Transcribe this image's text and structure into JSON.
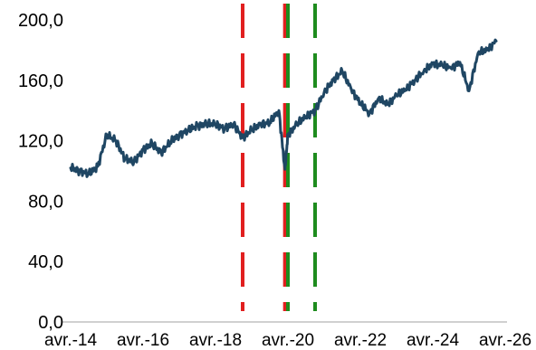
{
  "chart_data": {
    "type": "line",
    "title": "",
    "xlabel": "",
    "ylabel": "",
    "ylim": [
      0,
      200
    ],
    "yticks": [
      "0,0",
      "40,0",
      "80,0",
      "120,0",
      "160,0",
      "200,0"
    ],
    "ytick_values": [
      0,
      40,
      80,
      120,
      160,
      200
    ],
    "xlim": [
      "2014-04",
      "2026-04"
    ],
    "xticks": [
      "avr.-14",
      "avr.-16",
      "avr.-18",
      "avr.-20",
      "avr.-22",
      "avr.-24",
      "avr.-26"
    ],
    "xtick_dates": [
      "2014-04",
      "2016-04",
      "2018-04",
      "2020-04",
      "2022-04",
      "2024-04",
      "2026-04"
    ],
    "grid": false,
    "series": [
      {
        "color": "#1f4663",
        "x": [
          "2014-04",
          "2014-07",
          "2014-10",
          "2015-01",
          "2015-04",
          "2015-07",
          "2015-10",
          "2016-01",
          "2016-04",
          "2016-07",
          "2016-10",
          "2017-01",
          "2017-04",
          "2017-07",
          "2017-10",
          "2018-01",
          "2018-04",
          "2018-07",
          "2018-10",
          "2019-01",
          "2019-04",
          "2019-07",
          "2019-10",
          "2020-01",
          "2020-03",
          "2020-04",
          "2020-07",
          "2020-10",
          "2021-01",
          "2021-04",
          "2021-07",
          "2021-10",
          "2022-01",
          "2022-04",
          "2022-07",
          "2022-10",
          "2023-01",
          "2023-04",
          "2023-07",
          "2023-10",
          "2024-01",
          "2024-04",
          "2024-07",
          "2024-10",
          "2025-01",
          "2025-04",
          "2025-07",
          "2025-10",
          "2026-01"
        ],
        "values": [
          102,
          100,
          98,
          103,
          124,
          120,
          108,
          106,
          114,
          118,
          112,
          119,
          124,
          127,
          130,
          131,
          131,
          128,
          131,
          122,
          127,
          131,
          132,
          140,
          101,
          124,
          131,
          136,
          140,
          152,
          160,
          166,
          154,
          145,
          138,
          148,
          144,
          150,
          154,
          160,
          166,
          171,
          170,
          168,
          172,
          153,
          178,
          180,
          186
        ]
      }
    ],
    "vlines": [
      {
        "date": "2019-01",
        "color": "#e11f1f",
        "style": "dashed"
      },
      {
        "date": "2020-03",
        "color": "#e11f1f",
        "style": "dashed"
      },
      {
        "date": "2020-04",
        "color": "#1e8c1e",
        "style": "dashed"
      },
      {
        "date": "2021-01",
        "color": "#1e8c1e",
        "style": "dashed"
      }
    ]
  }
}
